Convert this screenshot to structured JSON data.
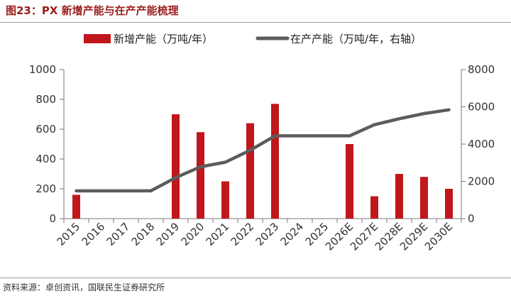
{
  "title": "图23：PX 新增产能与在产产能梳理",
  "source": "资料来源：卓创资讯，国联民生证券研究所",
  "colors": {
    "bar": "#c0171d",
    "line": "#5c5c5c",
    "title": "#9b1c1c",
    "axis": "#7a7a7a"
  },
  "chart_data": {
    "type": "bar",
    "categories": [
      "2015",
      "2016",
      "2017",
      "2018",
      "2019",
      "2020",
      "2021",
      "2022",
      "2023",
      "2024",
      "2025",
      "2026E",
      "2027E",
      "2028E",
      "2029E",
      "2030E"
    ],
    "series": [
      {
        "name": "新增产能（万吨/年）",
        "type": "bar",
        "axis": "left",
        "values": [
          160,
          null,
          null,
          null,
          700,
          580,
          250,
          640,
          770,
          null,
          null,
          500,
          150,
          300,
          280,
          200
        ]
      },
      {
        "name": "在产产能（万吨/年，右轴）",
        "type": "line",
        "axis": "right",
        "values": [
          1490,
          1490,
          1490,
          1490,
          2200,
          2780,
          3030,
          3670,
          4440,
          4440,
          4440,
          4440,
          5040,
          5360,
          5640,
          5840
        ]
      }
    ],
    "y_left": {
      "min": 0,
      "max": 1000,
      "ticks": [
        0,
        200,
        400,
        600,
        800,
        1000
      ]
    },
    "y_right": {
      "min": 0,
      "max": 8000,
      "ticks": [
        0,
        2000,
        4000,
        6000,
        8000
      ]
    },
    "legend_position": "top",
    "grid": false
  }
}
